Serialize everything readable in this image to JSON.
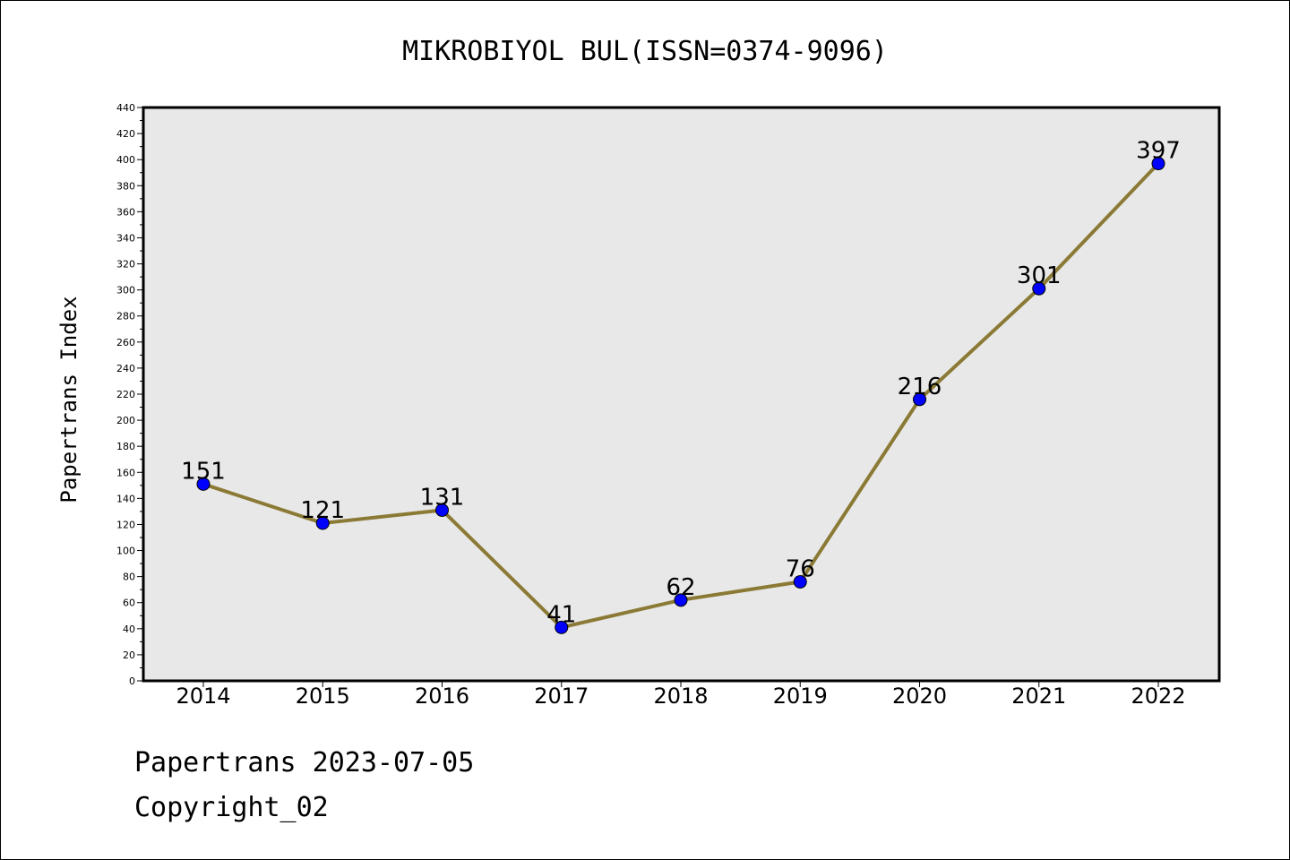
{
  "chart_data": {
    "type": "line",
    "title": "MIKROBIYOL BUL(ISSN=0374-9096)",
    "xlabel": "",
    "ylabel": "Papertrans Index",
    "categories": [
      "2014",
      "2015",
      "2016",
      "2017",
      "2018",
      "2019",
      "2020",
      "2021",
      "2022"
    ],
    "series": [
      {
        "values": [
          151,
          121,
          131,
          41,
          62,
          76,
          216,
          301,
          397
        ],
        "labels": [
          "151",
          "121",
          "131",
          "41",
          "62",
          "76",
          "216",
          "301",
          "397"
        ]
      }
    ],
    "ylim": [
      0,
      440
    ],
    "yticks": [
      "0",
      "20",
      "40",
      "60",
      "80",
      "100",
      "120",
      "140",
      "160",
      "180",
      "200",
      "220",
      "240",
      "260",
      "280",
      "300",
      "320",
      "340",
      "360",
      "380",
      "400",
      "420",
      "440"
    ],
    "grid": false,
    "legend": "none",
    "colors": {
      "line": "#8b7a35",
      "marker": "#0000ff",
      "plot_background": "#e8e8e8"
    }
  },
  "footer": {
    "date_text": "Papertrans 2023-07-05",
    "copyright_text": "Copyright_02"
  }
}
